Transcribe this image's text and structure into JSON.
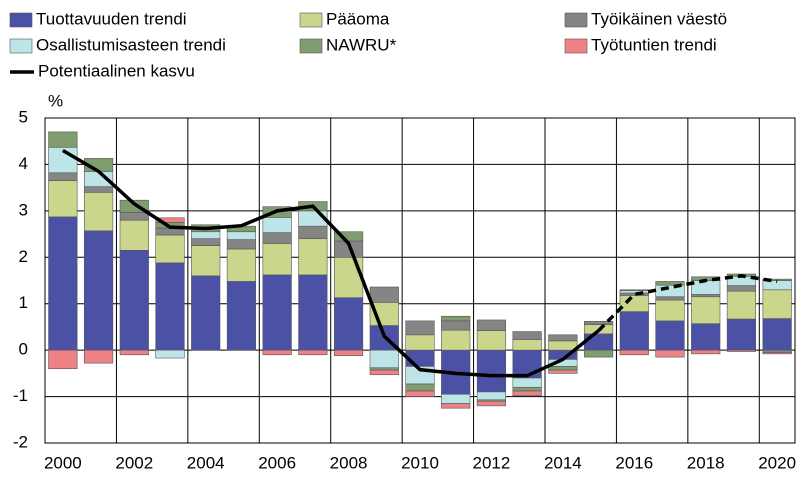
{
  "chart_data": {
    "type": "stacked_bar_line",
    "y_unit": "%",
    "categories": [
      "2000",
      null,
      "2002",
      null,
      "2004",
      null,
      "2006",
      null,
      "2008",
      null,
      "2010",
      null,
      "2012",
      null,
      "2014",
      null,
      "2016",
      null,
      "2018",
      null,
      "2020"
    ],
    "ylim": [
      -2,
      5
    ],
    "yticks": [
      -2,
      -1,
      0,
      1,
      2,
      3,
      4,
      5
    ],
    "grid": true,
    "series": [
      {
        "name": "Tuottavuuden trendi",
        "color": "#4b52a6",
        "values": [
          2.87,
          2.57,
          2.15,
          1.88,
          1.6,
          1.48,
          1.62,
          1.62,
          1.13,
          0.53,
          -0.35,
          -0.95,
          -0.9,
          -0.6,
          -0.2,
          0.35,
          0.83,
          0.63,
          0.57,
          0.67,
          0.68
        ]
      },
      {
        "name": "Pääoma",
        "color": "#c9d68c",
        "values": [
          0.78,
          0.83,
          0.65,
          0.6,
          0.65,
          0.7,
          0.68,
          0.78,
          0.87,
          0.5,
          0.33,
          0.43,
          0.42,
          0.23,
          0.2,
          0.2,
          0.35,
          0.45,
          0.58,
          0.6,
          0.62
        ]
      },
      {
        "name": "Työikäinen väestö",
        "color": "#858585",
        "values": [
          0.17,
          0.12,
          0.17,
          0.15,
          0.15,
          0.2,
          0.23,
          0.27,
          0.35,
          0.33,
          0.3,
          0.2,
          0.23,
          0.17,
          0.13,
          0.07,
          0.05,
          0.07,
          0.05,
          0.12,
          -0.05
        ]
      },
      {
        "name": "Osallistumisasteen trendi",
        "color": "#bde5e8",
        "values": [
          0.55,
          0.33,
          0.0,
          -0.17,
          0.15,
          0.17,
          0.33,
          0.33,
          0.0,
          -0.38,
          -0.38,
          -0.2,
          -0.17,
          -0.2,
          -0.15,
          0.0,
          0.05,
          0.25,
          0.3,
          0.2,
          0.2
        ]
      },
      {
        "name": "NAWRU*",
        "color": "#7f9d6e",
        "values": [
          0.33,
          0.28,
          0.26,
          0.12,
          0.15,
          0.12,
          0.23,
          0.2,
          0.2,
          -0.05,
          -0.15,
          0.1,
          -0.03,
          -0.08,
          -0.08,
          -0.15,
          0.02,
          0.08,
          0.08,
          0.05,
          0.03
        ]
      },
      {
        "name": "Työtuntien trendi",
        "color": "#ef8286",
        "values": [
          -0.4,
          -0.28,
          -0.1,
          0.1,
          0.0,
          0.0,
          -0.1,
          -0.1,
          -0.12,
          -0.1,
          -0.12,
          -0.1,
          -0.1,
          -0.1,
          -0.07,
          0.0,
          -0.1,
          -0.15,
          -0.08,
          -0.03,
          -0.03
        ]
      }
    ],
    "line": {
      "name": "Potentiaalinen kasvu",
      "color": "#000000",
      "dash_start_index": 15,
      "values": [
        4.3,
        3.85,
        3.15,
        2.65,
        2.62,
        2.68,
        3.0,
        3.1,
        2.3,
        0.3,
        -0.42,
        -0.5,
        -0.55,
        -0.55,
        -0.2,
        0.42,
        1.2,
        1.35,
        1.5,
        1.6,
        1.48
      ]
    }
  }
}
